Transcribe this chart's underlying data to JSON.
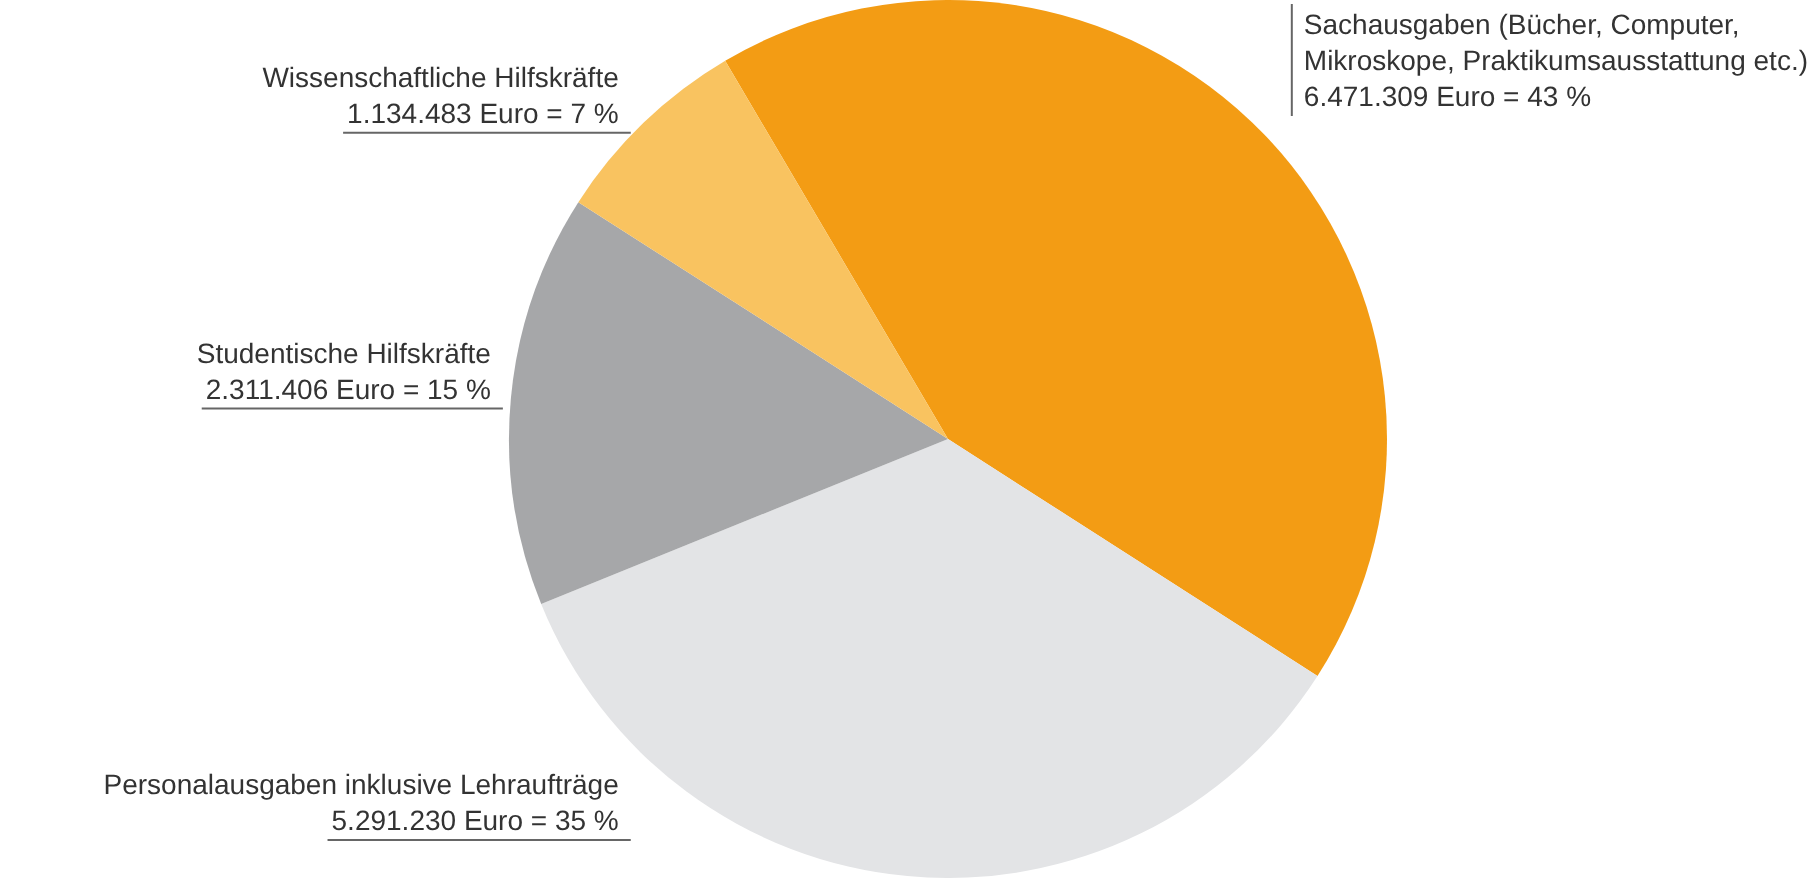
{
  "chart_data": {
    "type": "pie",
    "categories": [
      "Sachausgaben (Bücher, Computer, Mikroskope, Praktikumsausstattung etc.)",
      "Personalausgaben inklusive Lehraufträge",
      "Studentische Hilfskräfte",
      "Wissenschaftliche Hilfskräfte"
    ],
    "values": [
      6471309,
      5291230,
      2311406,
      1134483
    ],
    "value_labels": [
      "6.471.309 Euro = 43 %",
      "5.291.230 Euro = 35 %",
      "2.311.406 Euro = 15 %",
      "1.134.483 Euro = 7 %"
    ],
    "colors": [
      "#f39c14",
      "#e3e4e6",
      "#a6a7a9",
      "#f9c360"
    ],
    "legend": false
  }
}
